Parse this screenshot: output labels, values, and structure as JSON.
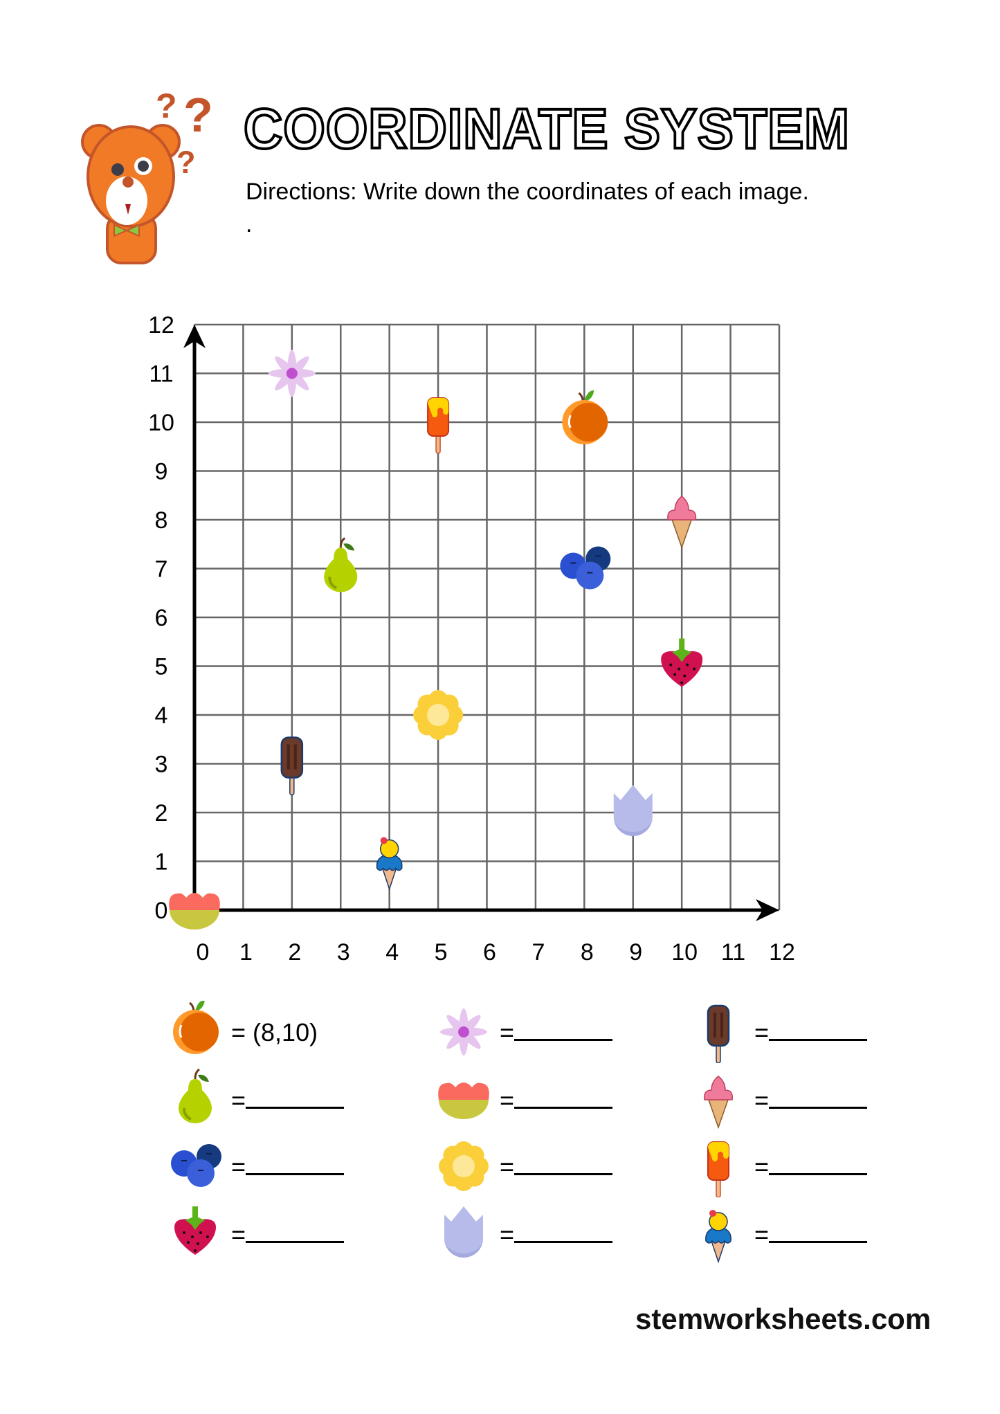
{
  "header": {
    "title": "COORDINATE SYSTEM",
    "directions": "Directions: Write down the coordinates of each image.",
    "dot": "."
  },
  "chart_data": {
    "type": "scatter",
    "xlim": [
      0,
      12
    ],
    "ylim": [
      0,
      12
    ],
    "grid": true,
    "x_ticks": [
      "0",
      "1",
      "2",
      "3",
      "4",
      "5",
      "6",
      "7",
      "8",
      "9",
      "10",
      "11",
      "12"
    ],
    "y_ticks": [
      "0",
      "1",
      "2",
      "3",
      "4",
      "5",
      "6",
      "7",
      "8",
      "9",
      "10",
      "11",
      "12"
    ],
    "points": [
      {
        "icon": "purple-flower",
        "x": 2,
        "y": 11
      },
      {
        "icon": "orange-popsicle",
        "x": 5,
        "y": 10
      },
      {
        "icon": "orange",
        "x": 8,
        "y": 10
      },
      {
        "icon": "pink-ice-cream",
        "x": 10,
        "y": 8
      },
      {
        "icon": "pear",
        "x": 3,
        "y": 7
      },
      {
        "icon": "blueberries",
        "x": 8,
        "y": 7
      },
      {
        "icon": "strawberry",
        "x": 10,
        "y": 5
      },
      {
        "icon": "yellow-flower",
        "x": 5,
        "y": 4
      },
      {
        "icon": "chocolate-popsicle",
        "x": 2,
        "y": 3
      },
      {
        "icon": "tulip",
        "x": 9,
        "y": 2
      },
      {
        "icon": "blue-ice-cream",
        "x": 4,
        "y": 1
      },
      {
        "icon": "red-flower",
        "x": 0,
        "y": 0
      }
    ]
  },
  "answers": [
    {
      "icon": "orange",
      "equals": "=",
      "answer": "(8,10)"
    },
    {
      "icon": "purple-flower",
      "equals": "=",
      "answer": ""
    },
    {
      "icon": "chocolate-popsicle",
      "equals": "=",
      "answer": ""
    },
    {
      "icon": "pear",
      "equals": "=",
      "answer": ""
    },
    {
      "icon": "red-flower",
      "equals": "=",
      "answer": ""
    },
    {
      "icon": "pink-ice-cream",
      "equals": "=",
      "answer": ""
    },
    {
      "icon": "blueberries",
      "equals": "=",
      "answer": ""
    },
    {
      "icon": "yellow-flower",
      "equals": "=",
      "answer": ""
    },
    {
      "icon": "orange-popsicle",
      "equals": "=",
      "answer": ""
    },
    {
      "icon": "strawberry",
      "equals": "=",
      "answer": ""
    },
    {
      "icon": "tulip",
      "equals": "=",
      "answer": ""
    },
    {
      "icon": "blue-ice-cream",
      "equals": "=",
      "answer": ""
    }
  ],
  "footer": {
    "site": "stemworksheets.com"
  }
}
